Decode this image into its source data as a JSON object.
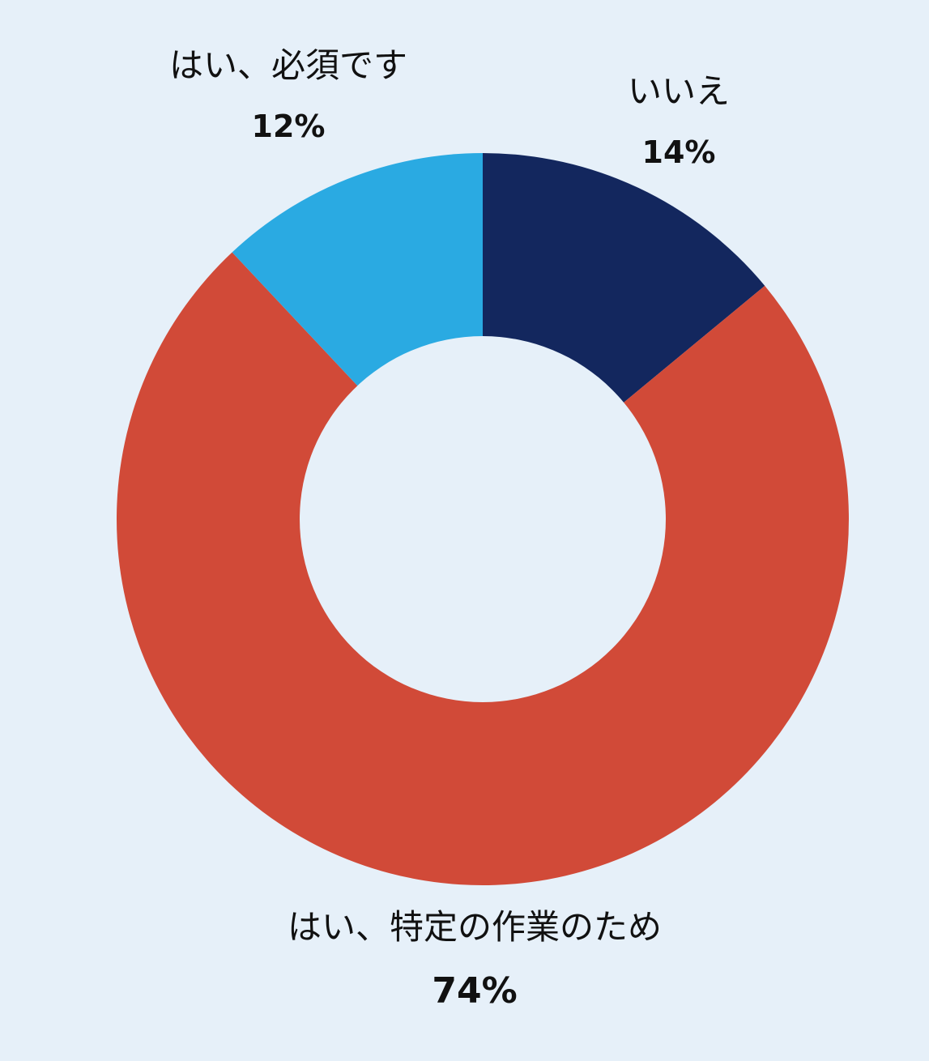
{
  "chart_data": {
    "type": "pie",
    "variant": "donut",
    "title": "",
    "start_angle_deg": 0,
    "direction": "clockwise",
    "slices": [
      {
        "label": "いいえ",
        "value": 14,
        "value_label": "14%",
        "color": "#13275e"
      },
      {
        "label": "はい、特定の作業のため",
        "value": 74,
        "value_label": "74%",
        "color": "#d14a38"
      },
      {
        "label": "はい、必須です",
        "value": 12,
        "value_label": "12%",
        "color": "#2aaae2"
      }
    ],
    "legend": "none",
    "background_color": "#e6f0f9"
  }
}
